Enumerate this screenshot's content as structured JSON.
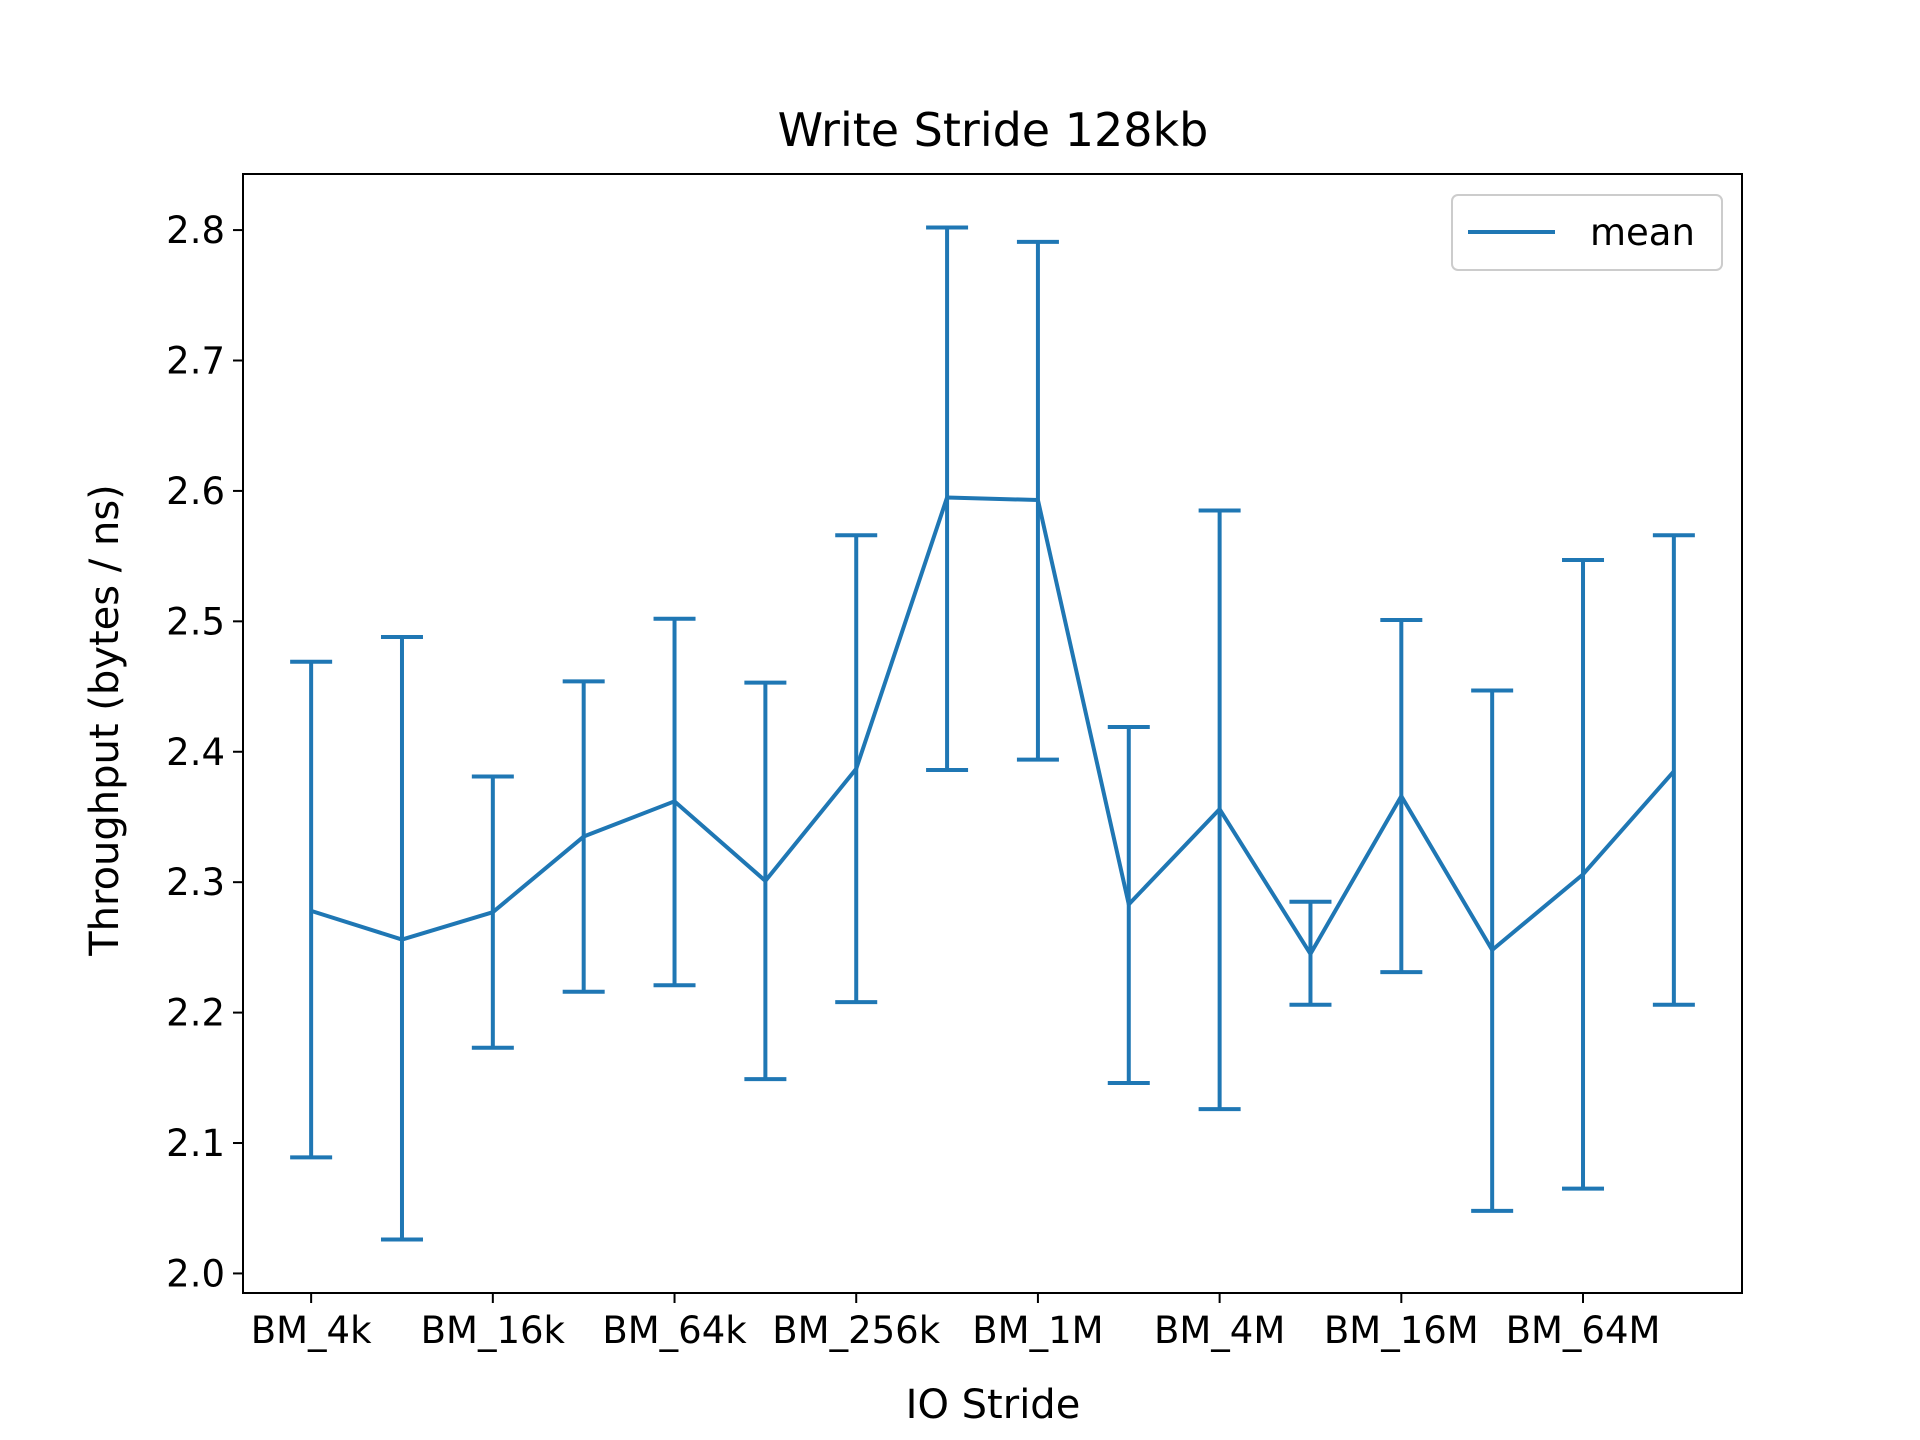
{
  "chart_data": {
    "type": "line",
    "title": "Write Stride 128kb",
    "xlabel": "IO Stride",
    "ylabel": "Throughput (bytes / ns)",
    "ylim": [
      1.985,
      2.843
    ],
    "yticks": [
      2.0,
      2.1,
      2.2,
      2.3,
      2.4,
      2.5,
      2.6,
      2.7,
      2.8
    ],
    "ytick_labels": [
      "2.0",
      "2.1",
      "2.2",
      "2.3",
      "2.4",
      "2.5",
      "2.6",
      "2.7",
      "2.8"
    ],
    "xtick_labels": [
      "BM_4k",
      "BM_16k",
      "BM_64k",
      "BM_256k",
      "BM_1M",
      "BM_4M",
      "BM_16M",
      "BM_64M"
    ],
    "xtick_positions": [
      0,
      2,
      4,
      6,
      8,
      10,
      12,
      14
    ],
    "grid": false,
    "legend_position": "top-right",
    "series": [
      {
        "name": "mean",
        "color": "#1f77b4",
        "x": [
          0,
          1,
          2,
          3,
          4,
          5,
          6,
          7,
          8,
          9,
          10,
          11,
          12,
          13,
          14,
          15
        ],
        "values": [
          2.278,
          2.256,
          2.277,
          2.335,
          2.362,
          2.301,
          2.387,
          2.595,
          2.593,
          2.283,
          2.356,
          2.245,
          2.366,
          2.248,
          2.306,
          2.385
        ],
        "lower": [
          2.089,
          2.026,
          2.173,
          2.216,
          2.221,
          2.149,
          2.208,
          2.386,
          2.394,
          2.146,
          2.126,
          2.206,
          2.231,
          2.048,
          2.065,
          2.206
        ],
        "upper": [
          2.469,
          2.488,
          2.381,
          2.454,
          2.502,
          2.453,
          2.566,
          2.802,
          2.791,
          2.419,
          2.585,
          2.285,
          2.501,
          2.447,
          2.547,
          2.566
        ]
      }
    ]
  }
}
